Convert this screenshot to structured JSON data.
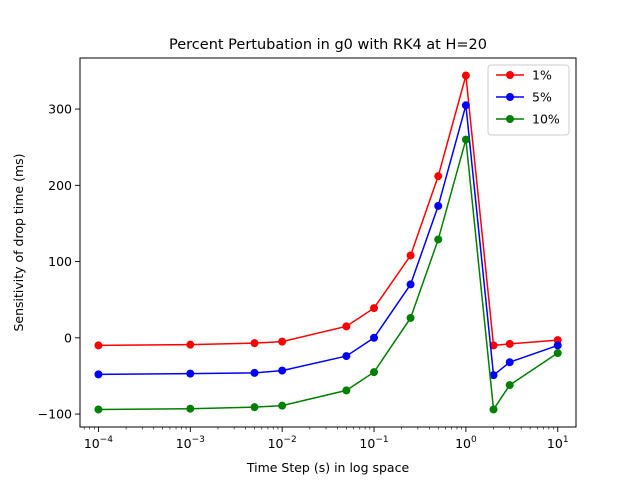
{
  "chart_data": {
    "type": "line",
    "title": "Percent Pertubation in g0 with RK4 at H=20",
    "xlabel": "Time Step (s) in log space",
    "ylabel": "Sensitivity of drop time (ms)",
    "xscale": "log",
    "xlim": [
      6.3e-05,
      15.8
    ],
    "ylim": [
      -117,
      367
    ],
    "x_ticks": [
      {
        "value": 0.0001,
        "base": "10",
        "exp": "−4"
      },
      {
        "value": 0.001,
        "base": "10",
        "exp": "−3"
      },
      {
        "value": 0.01,
        "base": "10",
        "exp": "−2"
      },
      {
        "value": 0.1,
        "base": "10",
        "exp": "−1"
      },
      {
        "value": 1,
        "base": "10",
        "exp": "0"
      },
      {
        "value": 10,
        "base": "10",
        "exp": "1"
      }
    ],
    "y_ticks": [
      {
        "value": -100,
        "label": "−100"
      },
      {
        "value": 0,
        "label": "0"
      },
      {
        "value": 100,
        "label": "100"
      },
      {
        "value": 200,
        "label": "200"
      },
      {
        "value": 300,
        "label": "300"
      }
    ],
    "x": [
      0.0001,
      0.001,
      0.005,
      0.01,
      0.05,
      0.1,
      0.25,
      0.5,
      1,
      2,
      3,
      10
    ],
    "series": [
      {
        "name": "1%",
        "color": "#ff0000",
        "values": [
          -10,
          -9,
          -7,
          -5,
          15,
          39,
          108,
          212,
          344,
          -10,
          -8,
          -3
        ]
      },
      {
        "name": "5%",
        "color": "#0000ff",
        "values": [
          -48,
          -47,
          -46,
          -43,
          -24,
          0,
          70,
          173,
          305,
          -49,
          -32,
          -10
        ]
      },
      {
        "name": "10%",
        "color": "#008000",
        "values": [
          -94,
          -93,
          -91,
          -89,
          -69,
          -45,
          26,
          129,
          260,
          -94,
          -62,
          -20
        ]
      }
    ],
    "grid": false,
    "legend_position": "top-right"
  }
}
